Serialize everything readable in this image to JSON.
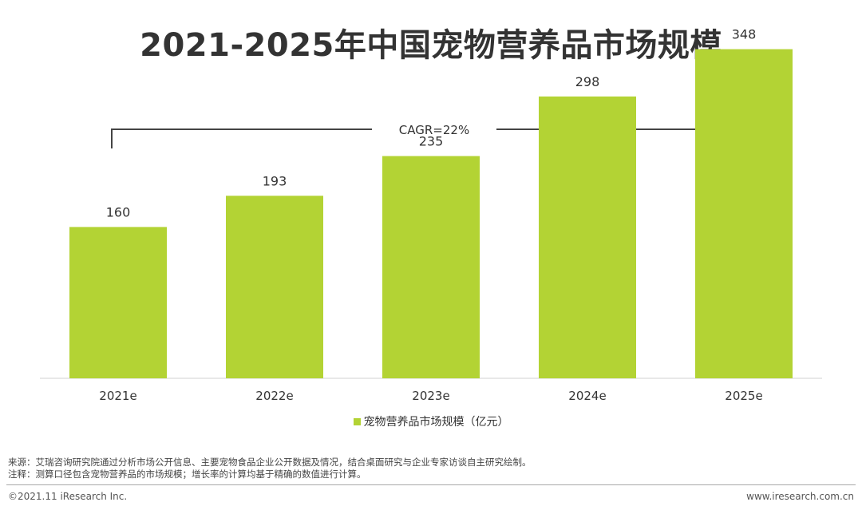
{
  "title": "2021-2025年中国宠物营养品市场规模",
  "cagr_label": "CAGR=22%",
  "legend_label": "宠物营养品市场规模（亿元）",
  "bar_color": "#b3d334",
  "source_note": "来源：艾瑞咨询研究院通过分析市场公开信息、主要宠物食品企业公开数据及情况，结合桌面研究与企业专家访谈自主研究绘制。",
  "remark_note": "注释：测算口径包含宠物营养品的市场规模；增长率的计算均基于精确的数值进行计算。",
  "copyright": "©2021.11 iResearch Inc.",
  "website": "www.iresearch.com.cn",
  "chart_data": {
    "type": "bar",
    "categories": [
      "2021e",
      "2022e",
      "2023e",
      "2024e",
      "2025e"
    ],
    "series": [
      {
        "name": "宠物营养品市场规模（亿元）",
        "values": [
          160,
          193,
          235,
          298,
          348
        ]
      }
    ],
    "ylim": [
      0,
      400
    ],
    "grid": false,
    "legend_position": "bottom"
  }
}
